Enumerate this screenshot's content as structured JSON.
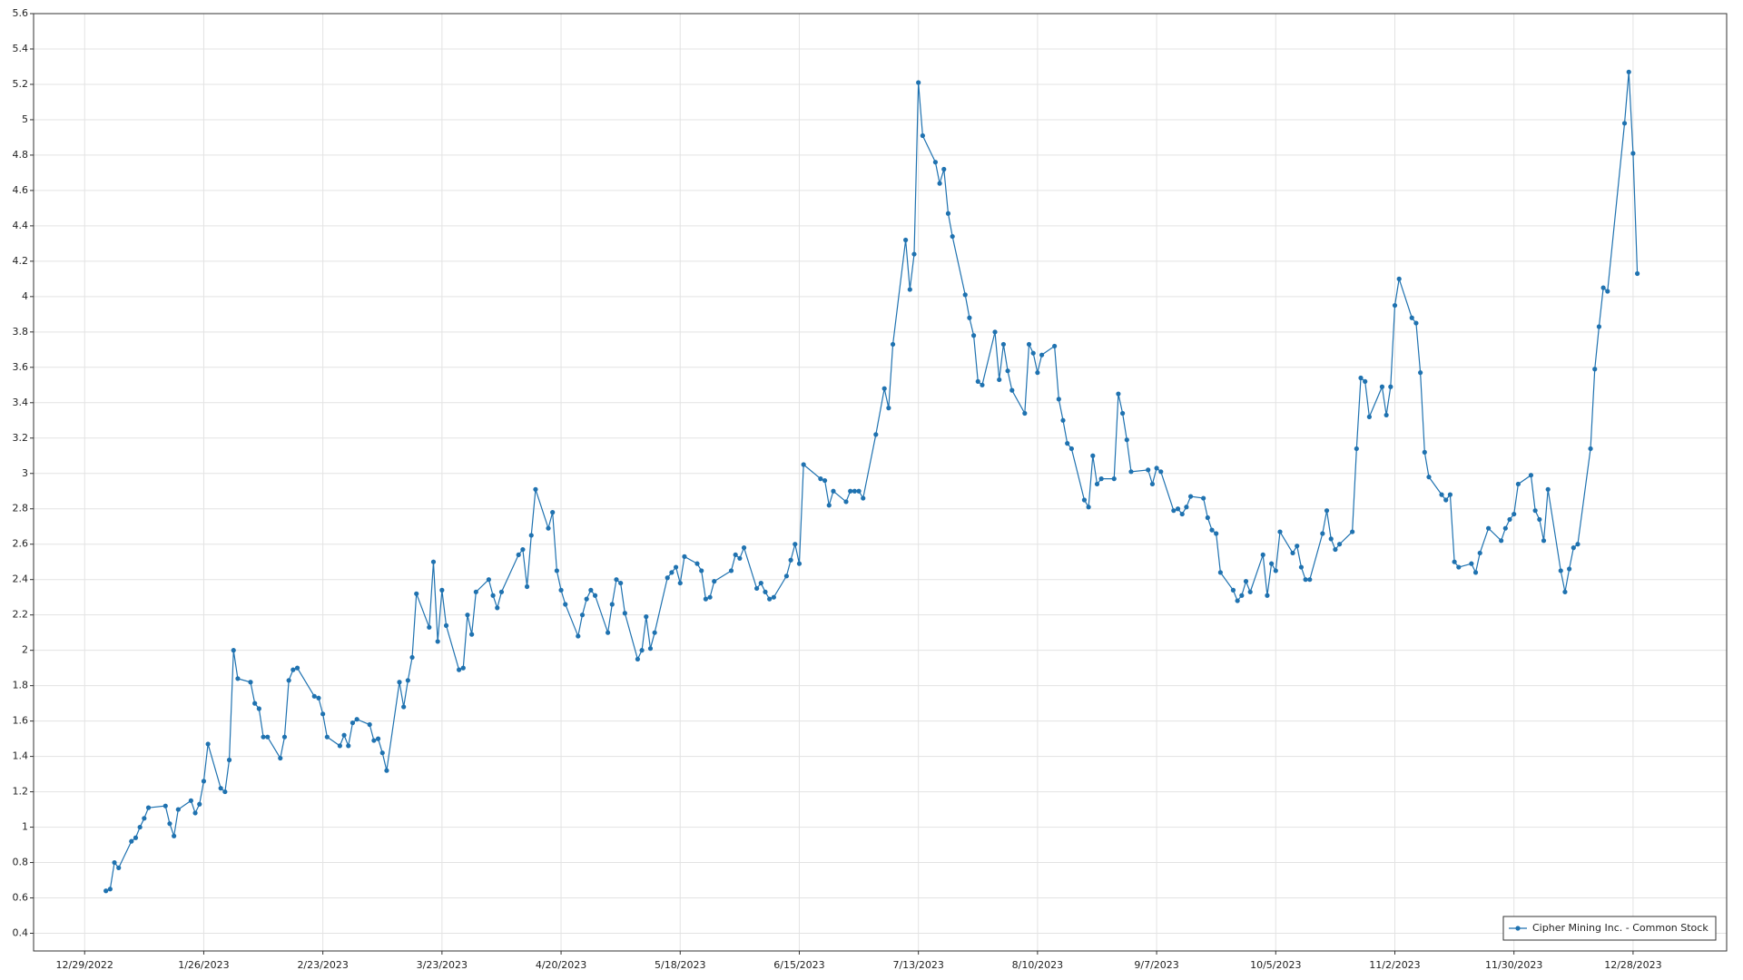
{
  "chart_data": {
    "type": "line",
    "x": [
      "1/3/2023",
      "1/4/2023",
      "1/5/2023",
      "1/6/2023",
      "1/9/2023",
      "1/10/2023",
      "1/11/2023",
      "1/12/2023",
      "1/13/2023",
      "1/17/2023",
      "1/18/2023",
      "1/19/2023",
      "1/20/2023",
      "1/23/2023",
      "1/24/2023",
      "1/25/2023",
      "1/26/2023",
      "1/27/2023",
      "1/30/2023",
      "1/31/2023",
      "2/1/2023",
      "2/2/2023",
      "2/3/2023",
      "2/6/2023",
      "2/7/2023",
      "2/8/2023",
      "2/9/2023",
      "2/10/2023",
      "2/13/2023",
      "2/14/2023",
      "2/15/2023",
      "2/16/2023",
      "2/17/2023",
      "2/21/2023",
      "2/22/2023",
      "2/23/2023",
      "2/24/2023",
      "2/27/2023",
      "2/28/2023",
      "3/1/2023",
      "3/2/2023",
      "3/3/2023",
      "3/6/2023",
      "3/7/2023",
      "3/8/2023",
      "3/9/2023",
      "3/10/2023",
      "3/13/2023",
      "3/14/2023",
      "3/15/2023",
      "3/16/2023",
      "3/17/2023",
      "3/20/2023",
      "3/21/2023",
      "3/22/2023",
      "3/23/2023",
      "3/24/2023",
      "3/27/2023",
      "3/28/2023",
      "3/29/2023",
      "3/30/2023",
      "3/31/2023",
      "4/3/2023",
      "4/4/2023",
      "4/5/2023",
      "4/6/2023",
      "4/10/2023",
      "4/11/2023",
      "4/12/2023",
      "4/13/2023",
      "4/14/2023",
      "4/17/2023",
      "4/18/2023",
      "4/19/2023",
      "4/20/2023",
      "4/21/2023",
      "4/24/2023",
      "4/25/2023",
      "4/26/2023",
      "4/27/2023",
      "4/28/2023",
      "5/1/2023",
      "5/2/2023",
      "5/3/2023",
      "5/4/2023",
      "5/5/2023",
      "5/8/2023",
      "5/9/2023",
      "5/10/2023",
      "5/11/2023",
      "5/12/2023",
      "5/15/2023",
      "5/16/2023",
      "5/17/2023",
      "5/18/2023",
      "5/19/2023",
      "5/22/2023",
      "5/23/2023",
      "5/24/2023",
      "5/25/2023",
      "5/26/2023",
      "5/30/2023",
      "5/31/2023",
      "6/1/2023",
      "6/2/2023",
      "6/5/2023",
      "6/6/2023",
      "6/7/2023",
      "6/8/2023",
      "6/9/2023",
      "6/12/2023",
      "6/13/2023",
      "6/14/2023",
      "6/15/2023",
      "6/16/2023",
      "6/20/2023",
      "6/21/2023",
      "6/22/2023",
      "6/23/2023",
      "6/26/2023",
      "6/27/2023",
      "6/28/2023",
      "6/29/2023",
      "6/30/2023",
      "7/3/2023",
      "7/5/2023",
      "7/6/2023",
      "7/7/2023",
      "7/10/2023",
      "7/11/2023",
      "7/12/2023",
      "7/13/2023",
      "7/14/2023",
      "7/17/2023",
      "7/18/2023",
      "7/19/2023",
      "7/20/2023",
      "7/21/2023",
      "7/24/2023",
      "7/25/2023",
      "7/26/2023",
      "7/27/2023",
      "7/28/2023",
      "7/31/2023",
      "8/1/2023",
      "8/2/2023",
      "8/3/2023",
      "8/4/2023",
      "8/7/2023",
      "8/8/2023",
      "8/9/2023",
      "8/10/2023",
      "8/11/2023",
      "8/14/2023",
      "8/15/2023",
      "8/16/2023",
      "8/17/2023",
      "8/18/2023",
      "8/21/2023",
      "8/22/2023",
      "8/23/2023",
      "8/24/2023",
      "8/25/2023",
      "8/28/2023",
      "8/29/2023",
      "8/30/2023",
      "8/31/2023",
      "9/1/2023",
      "9/5/2023",
      "9/6/2023",
      "9/7/2023",
      "9/8/2023",
      "9/11/2023",
      "9/12/2023",
      "9/13/2023",
      "9/14/2023",
      "9/15/2023",
      "9/18/2023",
      "9/19/2023",
      "9/20/2023",
      "9/21/2023",
      "9/22/2023",
      "9/25/2023",
      "9/26/2023",
      "9/27/2023",
      "9/28/2023",
      "9/29/2023",
      "10/2/2023",
      "10/3/2023",
      "10/4/2023",
      "10/5/2023",
      "10/6/2023",
      "10/9/2023",
      "10/10/2023",
      "10/11/2023",
      "10/12/2023",
      "10/13/2023",
      "10/16/2023",
      "10/17/2023",
      "10/18/2023",
      "10/19/2023",
      "10/20/2023",
      "10/23/2023",
      "10/24/2023",
      "10/25/2023",
      "10/26/2023",
      "10/27/2023",
      "10/30/2023",
      "10/31/2023",
      "11/1/2023",
      "11/2/2023",
      "11/3/2023",
      "11/6/2023",
      "11/7/2023",
      "11/8/2023",
      "11/9/2023",
      "11/10/2023",
      "11/13/2023",
      "11/14/2023",
      "11/15/2023",
      "11/16/2023",
      "11/17/2023",
      "11/20/2023",
      "11/21/2023",
      "11/22/2023",
      "11/24/2023",
      "11/27/2023",
      "11/28/2023",
      "11/29/2023",
      "11/30/2023",
      "12/1/2023",
      "12/4/2023",
      "12/5/2023",
      "12/6/2023",
      "12/7/2023",
      "12/8/2023",
      "12/11/2023",
      "12/12/2023",
      "12/13/2023",
      "12/14/2023",
      "12/15/2023",
      "12/18/2023",
      "12/19/2023",
      "12/20/2023",
      "12/21/2023",
      "12/22/2023",
      "12/26/2023",
      "12/27/2023",
      "12/28/2023",
      "12/29/2023"
    ],
    "series": [
      {
        "name": "Cipher Mining Inc. - Common Stock",
        "color": "#1f72b0",
        "values": [
          0.64,
          0.65,
          0.8,
          0.77,
          0.92,
          0.94,
          1.0,
          1.05,
          1.11,
          1.12,
          1.02,
          0.95,
          1.1,
          1.15,
          1.08,
          1.13,
          1.26,
          1.47,
          1.22,
          1.2,
          1.38,
          2.0,
          1.84,
          1.82,
          1.7,
          1.67,
          1.51,
          1.51,
          1.39,
          1.51,
          1.83,
          1.89,
          1.9,
          1.74,
          1.73,
          1.64,
          1.51,
          1.46,
          1.52,
          1.46,
          1.59,
          1.61,
          1.58,
          1.49,
          1.5,
          1.42,
          1.32,
          1.82,
          1.68,
          1.83,
          1.96,
          2.32,
          2.13,
          2.5,
          2.05,
          2.34,
          2.14,
          1.89,
          1.9,
          2.2,
          2.09,
          2.33,
          2.4,
          2.31,
          2.24,
          2.33,
          2.54,
          2.57,
          2.36,
          2.65,
          2.91,
          2.69,
          2.78,
          2.45,
          2.34,
          2.26,
          2.08,
          2.2,
          2.29,
          2.34,
          2.31,
          2.1,
          2.26,
          2.4,
          2.38,
          2.21,
          1.95,
          2.0,
          2.19,
          2.01,
          2.1,
          2.41,
          2.44,
          2.47,
          2.38,
          2.53,
          2.49,
          2.45,
          2.29,
          2.3,
          2.39,
          2.45,
          2.54,
          2.52,
          2.58,
          2.35,
          2.38,
          2.33,
          2.29,
          2.3,
          2.42,
          2.51,
          2.6,
          2.49,
          3.05,
          2.97,
          2.96,
          2.82,
          2.9,
          2.84,
          2.9,
          2.9,
          2.9,
          2.86,
          3.22,
          3.48,
          3.37,
          3.73,
          4.32,
          4.04,
          4.24,
          5.21,
          4.91,
          4.76,
          4.64,
          4.72,
          4.47,
          4.34,
          4.01,
          3.88,
          3.78,
          3.52,
          3.5,
          3.8,
          3.53,
          3.73,
          3.58,
          3.47,
          3.34,
          3.73,
          3.68,
          3.57,
          3.67,
          3.72,
          3.42,
          3.3,
          3.17,
          3.14,
          2.85,
          2.81,
          3.1,
          2.94,
          2.97,
          2.97,
          3.45,
          3.34,
          3.19,
          3.01,
          3.02,
          2.94,
          3.03,
          3.01,
          2.79,
          2.8,
          2.77,
          2.81,
          2.87,
          2.86,
          2.75,
          2.68,
          2.66,
          2.44,
          2.34,
          2.28,
          2.31,
          2.39,
          2.33,
          2.54,
          2.31,
          2.49,
          2.45,
          2.67,
          2.55,
          2.59,
          2.47,
          2.4,
          2.4,
          2.66,
          2.79,
          2.63,
          2.57,
          2.6,
          2.67,
          3.14,
          3.54,
          3.52,
          3.32,
          3.49,
          3.33,
          3.49,
          3.95,
          4.1,
          3.88,
          3.85,
          3.57,
          3.12,
          2.98,
          2.88,
          2.85,
          2.88,
          2.5,
          2.47,
          2.49,
          2.44,
          2.55,
          2.69,
          2.62,
          2.69,
          2.74,
          2.77,
          2.94,
          2.99,
          2.79,
          2.74,
          2.62,
          2.91,
          2.45,
          2.33,
          2.46,
          2.58,
          2.6,
          3.14,
          3.59,
          3.83,
          4.05,
          4.03,
          4.98,
          5.27,
          4.81,
          4.13
        ]
      }
    ],
    "xlim": [
      "12/17/2022",
      "1/19/2024"
    ],
    "xticks": [
      "12/29/2022",
      "1/26/2023",
      "2/23/2023",
      "3/23/2023",
      "4/20/2023",
      "5/18/2023",
      "6/15/2023",
      "7/13/2023",
      "8/10/2023",
      "9/7/2023",
      "10/5/2023",
      "11/2/2023",
      "11/30/2023",
      "12/28/2023"
    ],
    "ylim": [
      0.3,
      5.6
    ],
    "yticks": [
      0.4,
      0.6,
      0.8,
      1,
      1.2,
      1.4,
      1.6,
      1.8,
      2,
      2.2,
      2.4,
      2.6,
      2.8,
      3,
      3.2,
      3.4,
      3.6,
      3.8,
      4,
      4.2,
      4.4,
      4.6,
      4.8,
      5,
      5.2,
      5.4,
      5.6
    ],
    "grid": true,
    "markers": true,
    "legend_position": "lower right"
  }
}
